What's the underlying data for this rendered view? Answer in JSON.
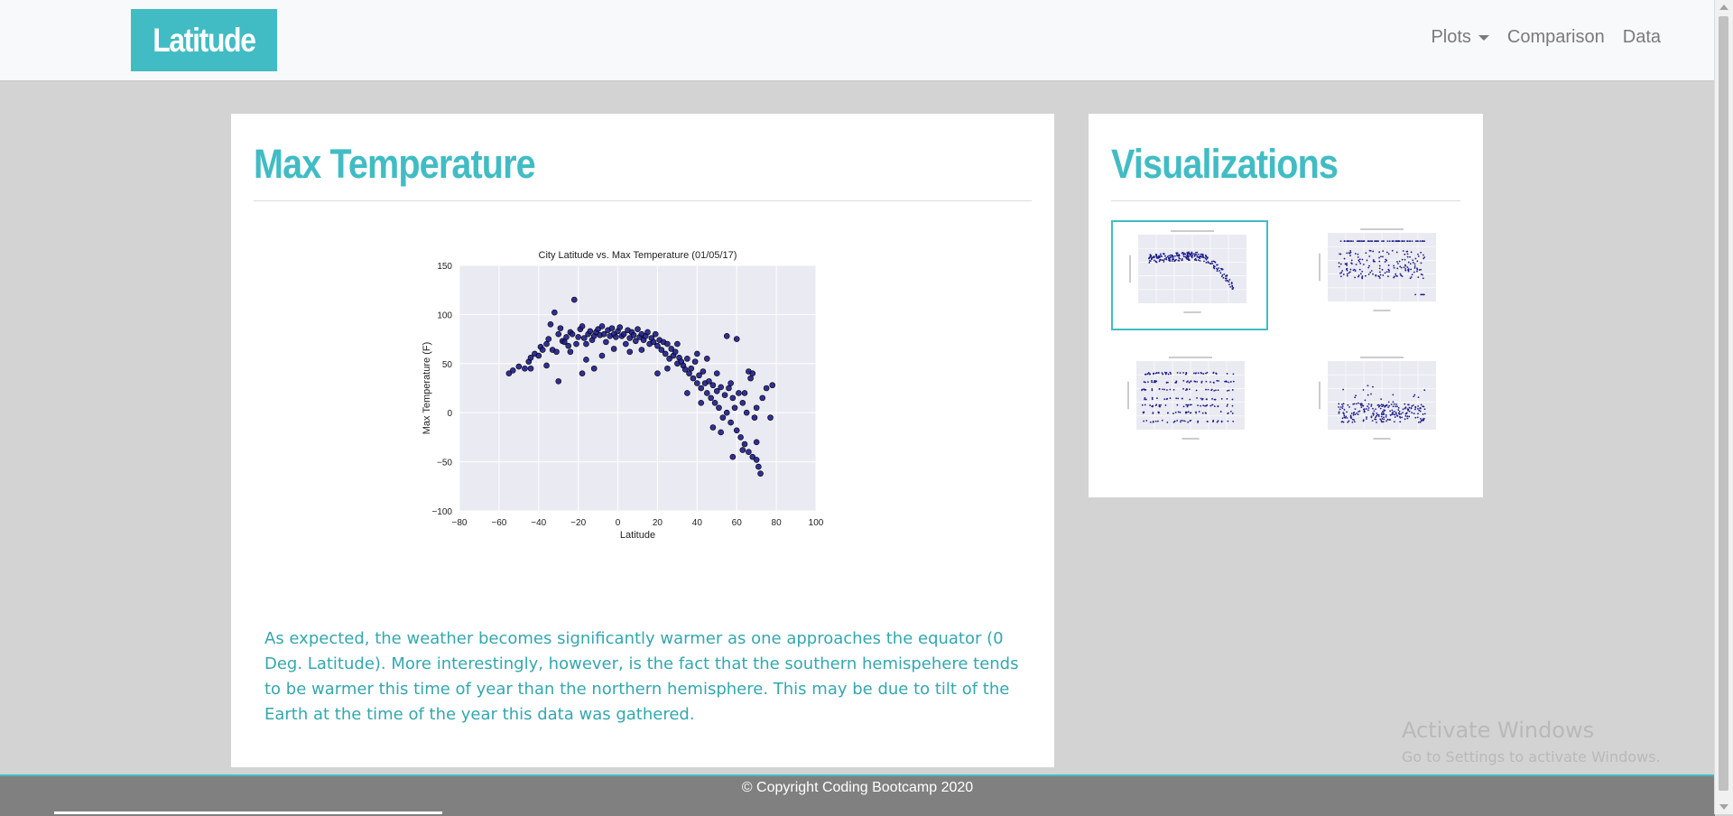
{
  "brand": {
    "text": "Latitude"
  },
  "nav": {
    "items": [
      {
        "label": "Plots",
        "dropdown": true
      },
      {
        "label": "Comparison",
        "dropdown": false
      },
      {
        "label": "Data",
        "dropdown": false
      }
    ]
  },
  "main": {
    "title": "Max Temperature",
    "description": "As expected, the weather becomes significantly warmer as one approaches the equator (0 Deg. Latitude). More interestingly, however, is the fact that the southern hemispehere tends to be warmer this time of year than the northern hemisphere. This may be due to tilt of the Earth at the time of the year this data was gathered."
  },
  "side": {
    "title": "Visualizations",
    "thumbnails": [
      {
        "name": "thumb-max-temperature",
        "active": true
      },
      {
        "name": "thumb-humidity",
        "active": false
      },
      {
        "name": "thumb-cloudiness",
        "active": false
      },
      {
        "name": "thumb-wind-speed",
        "active": false
      }
    ]
  },
  "footer": {
    "text": "© Copyright Coding Bootcamp 2020"
  },
  "watermark": {
    "line1": "Activate Windows",
    "line2": "Go to Settings to activate Windows."
  },
  "colors": {
    "accent": "#41bcc4",
    "point": "#1c1c8a",
    "plot_bg": "#eaeaf2"
  },
  "chart_data": {
    "type": "scatter",
    "title": "City Latitude vs. Max Temperature (01/05/17)",
    "xlabel": "Latitude",
    "ylabel": "Max Temperature (F)",
    "xlim": [
      -80,
      100
    ],
    "ylim": [
      -100,
      150
    ],
    "xticks": [
      "−80",
      "−60",
      "−40",
      "−20",
      "0",
      "20",
      "40",
      "60",
      "80",
      "100"
    ],
    "yticks": [
      "−100",
      "−50",
      "0",
      "50",
      "100",
      "150"
    ],
    "grid": true,
    "series": [
      {
        "points": [
          [
            -55,
            40
          ],
          [
            -53,
            43
          ],
          [
            -50,
            47
          ],
          [
            -47,
            45
          ],
          [
            -45,
            52
          ],
          [
            -44,
            56
          ],
          [
            -42,
            60
          ],
          [
            -40,
            58
          ],
          [
            -39,
            67
          ],
          [
            -38,
            64
          ],
          [
            -36,
            70
          ],
          [
            -35,
            75
          ],
          [
            -34,
            90
          ],
          [
            -33,
            64
          ],
          [
            -32,
            102
          ],
          [
            -31,
            62
          ],
          [
            -30,
            80
          ],
          [
            -29,
            86
          ],
          [
            -28,
            73
          ],
          [
            -27,
            72
          ],
          [
            -26,
            77
          ],
          [
            -25,
            68
          ],
          [
            -24,
            82
          ],
          [
            -23,
            80
          ],
          [
            -22,
            115
          ],
          [
            -21,
            70
          ],
          [
            -20,
            77
          ],
          [
            -19,
            85
          ],
          [
            -18,
            88
          ],
          [
            -17,
            76
          ],
          [
            -16,
            70
          ],
          [
            -15,
            80
          ],
          [
            -14,
            83
          ],
          [
            -13,
            74
          ],
          [
            -12,
            78
          ],
          [
            -11,
            82
          ],
          [
            -10,
            85
          ],
          [
            -9,
            79
          ],
          [
            -8,
            88
          ],
          [
            -7,
            80
          ],
          [
            -6,
            72
          ],
          [
            -5,
            84
          ],
          [
            -4,
            78
          ],
          [
            -3,
            86
          ],
          [
            -2,
            80
          ],
          [
            -1,
            77
          ],
          [
            0,
            83
          ],
          [
            1,
            87
          ],
          [
            2,
            78
          ],
          [
            3,
            80
          ],
          [
            4,
            70
          ],
          [
            5,
            84
          ],
          [
            6,
            76
          ],
          [
            7,
            82
          ],
          [
            8,
            79
          ],
          [
            9,
            73
          ],
          [
            10,
            85
          ],
          [
            11,
            77
          ],
          [
            12,
            80
          ],
          [
            13,
            74
          ],
          [
            14,
            78
          ],
          [
            15,
            82
          ],
          [
            16,
            70
          ],
          [
            17,
            76
          ],
          [
            18,
            72
          ],
          [
            19,
            80
          ],
          [
            20,
            68
          ],
          [
            21,
            74
          ],
          [
            22,
            64
          ],
          [
            23,
            72
          ],
          [
            24,
            60
          ],
          [
            25,
            70
          ],
          [
            26,
            55
          ],
          [
            27,
            65
          ],
          [
            28,
            58
          ],
          [
            29,
            62
          ],
          [
            30,
            50
          ],
          [
            31,
            56
          ],
          [
            32,
            52
          ],
          [
            33,
            48
          ],
          [
            34,
            44
          ],
          [
            35,
            55
          ],
          [
            36,
            40
          ],
          [
            37,
            45
          ],
          [
            38,
            35
          ],
          [
            39,
            52
          ],
          [
            40,
            30
          ],
          [
            41,
            38
          ],
          [
            42,
            25
          ],
          [
            43,
            42
          ],
          [
            44,
            30
          ],
          [
            45,
            20
          ],
          [
            46,
            32
          ],
          [
            47,
            15
          ],
          [
            48,
            28
          ],
          [
            49,
            10
          ],
          [
            50,
            22
          ],
          [
            51,
            5
          ],
          [
            52,
            26
          ],
          [
            53,
            -5
          ],
          [
            54,
            18
          ],
          [
            55,
            0
          ],
          [
            56,
            25
          ],
          [
            57,
            -10
          ],
          [
            58,
            15
          ],
          [
            59,
            5
          ],
          [
            60,
            -18
          ],
          [
            61,
            20
          ],
          [
            62,
            -25
          ],
          [
            63,
            10
          ],
          [
            64,
            -32
          ],
          [
            65,
            0
          ],
          [
            66,
            -40
          ],
          [
            67,
            35
          ],
          [
            68,
            -45
          ],
          [
            69,
            -5
          ],
          [
            70,
            -30
          ],
          [
            71,
            -55
          ],
          [
            72,
            -62
          ],
          [
            73,
            15
          ],
          [
            75,
            25
          ],
          [
            77,
            -5
          ],
          [
            78,
            28
          ],
          [
            55,
            78
          ],
          [
            60,
            75
          ],
          [
            -44,
            45
          ],
          [
            -30,
            32
          ],
          [
            -18,
            40
          ],
          [
            -12,
            45
          ],
          [
            -8,
            58
          ],
          [
            -16,
            54
          ],
          [
            -24,
            62
          ],
          [
            -36,
            48
          ],
          [
            20,
            40
          ],
          [
            30,
            70
          ],
          [
            40,
            60
          ],
          [
            45,
            55
          ],
          [
            50,
            40
          ],
          [
            48,
            -15
          ],
          [
            58,
            -45
          ],
          [
            63,
            -38
          ],
          [
            70,
            -48
          ],
          [
            66,
            42
          ],
          [
            68,
            40
          ],
          [
            12,
            64
          ],
          [
            -2,
            65
          ],
          [
            6,
            62
          ],
          [
            25,
            45
          ],
          [
            35,
            20
          ],
          [
            42,
            10
          ],
          [
            52,
            -20
          ],
          [
            57,
            30
          ],
          [
            64,
            20
          ],
          [
            70,
            5
          ]
        ]
      }
    ]
  }
}
